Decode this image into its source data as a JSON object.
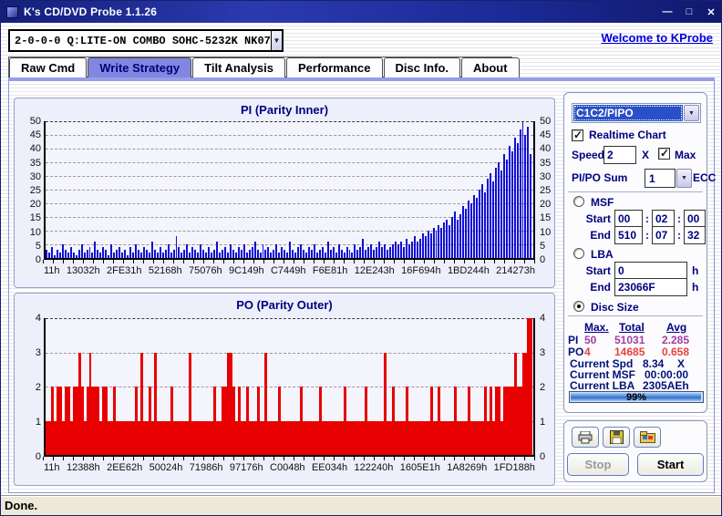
{
  "window": {
    "title": "K's CD/DVD Probe 1.1.26",
    "status_text": "Done.",
    "minimize_glyph": "—",
    "maximize_glyph": "□",
    "close_glyph": "✕"
  },
  "toolbar": {
    "drive": "2-0-0-0 Q:LITE-ON COMBO SOHC-5232K NK07",
    "link_text": "Welcome to KProbe"
  },
  "tabs": {
    "selected_index": 1,
    "items": [
      {
        "label": "Raw Cmd"
      },
      {
        "label": "Write Strategy"
      },
      {
        "label": "Tilt Analysis"
      },
      {
        "label": "Performance"
      },
      {
        "label": "Disc Info."
      },
      {
        "label": "About"
      }
    ]
  },
  "controls": {
    "mode_select": "C1C2/PIPO",
    "realtime_label": "Realtime Chart",
    "speed_label": "Speed",
    "speed_value": "2",
    "speed_unit": "X",
    "max_label": "Max",
    "pipo_sum_label": "PI/PO Sum",
    "pipo_sum_value": "1",
    "ecc_label": "ECC",
    "msf_label": "MSF",
    "lba_label": "LBA",
    "disc_size_label": "Disc Size",
    "start_label": "Start",
    "end_label": "End",
    "colon": ":",
    "hex_suffix": "h",
    "msf_start": [
      "00",
      "02",
      "00"
    ],
    "msf_end": [
      "510",
      "07",
      "32"
    ],
    "lba_start": "0",
    "lba_end": "23066F"
  },
  "stats": {
    "headers": [
      "Max.",
      "Total",
      "Avg"
    ],
    "rows": [
      {
        "label": "PI",
        "max": "50",
        "total": "51031",
        "avg": "2.285"
      },
      {
        "label": "PO",
        "max": "4",
        "total": "14685",
        "avg": "0.658"
      }
    ],
    "current": [
      {
        "label": "Current Spd",
        "value": "8.34",
        "suffix": "X"
      },
      {
        "label": "Current MSF",
        "value": "00:00:00",
        "suffix": ""
      },
      {
        "label": "Current LBA",
        "value": "2305AEh",
        "suffix": ""
      }
    ],
    "progress": "99%",
    "progress_pct": 99
  },
  "actions": {
    "stop": "Stop",
    "start": "Start"
  },
  "colors": {
    "pi_bar": "#0f0fd6",
    "po_bar": "#e80000",
    "chart_title": "#000080",
    "selected_tab": "#8187e0",
    "link": "#0000dd"
  },
  "chart_data": [
    {
      "type": "bar",
      "title": "PI (Parity Inner)",
      "ylim": [
        0,
        50
      ],
      "yticks": [
        0,
        5,
        10,
        15,
        20,
        25,
        30,
        35,
        40,
        45,
        50
      ],
      "xticks": [
        "11h",
        "13032h",
        "2FE31h",
        "52168h",
        "75076h",
        "9C149h",
        "C7449h",
        "F6E81h",
        "12E243h",
        "16F694h",
        "1BD244h",
        "214273h"
      ],
      "color": "#0f0fd6",
      "legend": "none",
      "grid": "dashed-horizontal",
      "values": [
        3,
        2,
        4,
        1,
        3,
        2,
        5,
        3,
        2,
        4,
        2,
        1,
        3,
        5,
        2,
        3,
        4,
        2,
        6,
        3,
        2,
        4,
        3,
        1,
        5,
        2,
        3,
        4,
        2,
        3,
        1,
        4,
        2,
        5,
        3,
        2,
        4,
        3,
        2,
        6,
        3,
        2,
        4,
        2,
        3,
        5,
        2,
        3,
        8,
        4,
        2,
        3,
        5,
        2,
        4,
        3,
        2,
        5,
        3,
        2,
        4,
        2,
        3,
        6,
        2,
        3,
        4,
        2,
        5,
        3,
        2,
        4,
        3,
        5,
        2,
        3,
        4,
        6,
        3,
        2,
        5,
        3,
        4,
        2,
        3,
        5,
        2,
        4,
        3,
        2,
        6,
        3,
        2,
        4,
        5,
        3,
        2,
        4,
        3,
        5,
        2,
        3,
        4,
        2,
        6,
        3,
        4,
        2,
        5,
        3,
        2,
        4,
        3,
        2,
        5,
        3,
        4,
        7,
        3,
        4,
        5,
        3,
        4,
        6,
        4,
        5,
        3,
        4,
        5,
        6,
        5,
        6,
        4,
        7,
        5,
        6,
        8,
        6,
        7,
        9,
        8,
        10,
        9,
        11,
        10,
        12,
        11,
        13,
        14,
        12,
        15,
        17,
        14,
        16,
        19,
        18,
        21,
        20,
        23,
        22,
        25,
        27,
        24,
        29,
        31,
        28,
        33,
        35,
        32,
        38,
        36,
        41,
        39,
        44,
        42,
        47,
        50,
        45,
        48,
        38
      ]
    },
    {
      "type": "bar",
      "title": "PO (Parity Outer)",
      "ylim": [
        0,
        4
      ],
      "yticks": [
        0,
        1,
        2,
        3,
        4
      ],
      "xticks": [
        "11h",
        "12388h",
        "2EE62h",
        "50024h",
        "71986h",
        "97176h",
        "C0048h",
        "EE034h",
        "122240h",
        "1605E1h",
        "1A8269h",
        "1FD188h"
      ],
      "color": "#e80000",
      "legend": "none",
      "grid": "dashed-horizontal",
      "values": [
        1,
        1,
        2,
        1,
        2,
        2,
        1,
        2,
        2,
        1,
        2,
        2,
        3,
        2,
        1,
        2,
        3,
        2,
        2,
        2,
        1,
        2,
        2,
        1,
        1,
        2,
        1,
        1,
        1,
        1,
        1,
        1,
        1,
        2,
        1,
        3,
        1,
        1,
        2,
        1,
        3,
        1,
        1,
        1,
        1,
        1,
        2,
        1,
        1,
        1,
        1,
        1,
        1,
        3,
        1,
        1,
        1,
        1,
        1,
        1,
        1,
        1,
        2,
        1,
        1,
        2,
        2,
        3,
        3,
        2,
        1,
        2,
        1,
        1,
        2,
        1,
        1,
        1,
        2,
        1,
        1,
        3,
        1,
        1,
        1,
        1,
        2,
        1,
        1,
        1,
        1,
        1,
        1,
        1,
        2,
        1,
        1,
        1,
        1,
        1,
        1,
        2,
        1,
        1,
        1,
        1,
        1,
        1,
        1,
        1,
        2,
        1,
        1,
        1,
        1,
        1,
        1,
        1,
        2,
        1,
        1,
        1,
        1,
        1,
        1,
        3,
        1,
        1,
        2,
        1,
        1,
        1,
        1,
        2,
        1,
        1,
        1,
        1,
        1,
        1,
        1,
        1,
        2,
        1,
        1,
        2,
        1,
        1,
        1,
        1,
        1,
        2,
        1,
        1,
        1,
        1,
        2,
        1,
        1,
        1,
        1,
        1,
        2,
        1,
        2,
        1,
        2,
        2,
        1,
        2,
        2,
        2,
        2,
        3,
        2,
        2,
        3,
        3,
        4,
        4
      ]
    }
  ]
}
